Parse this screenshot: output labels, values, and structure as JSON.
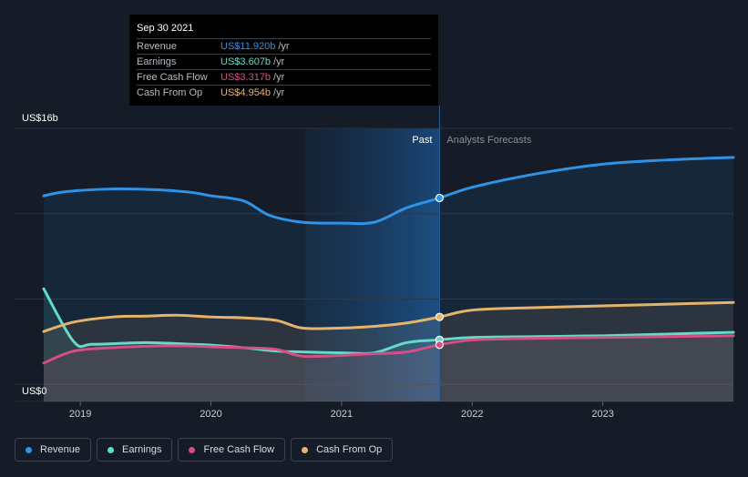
{
  "chart_data": {
    "type": "area",
    "y_axis": {
      "max_label": "US$16b",
      "min_label": "US$0",
      "ylim": [
        0,
        16
      ]
    },
    "x_ticks": [
      "2019",
      "2020",
      "2021",
      "2022",
      "2023"
    ],
    "x_range": [
      2018.72,
      2024.0
    ],
    "past_label": "Past",
    "forecast_label": "Analysts Forecasts",
    "divider_x": 2021.75,
    "shaded_start": 2020.72,
    "grid": true,
    "series": [
      {
        "name": "Revenue",
        "color": "#2e93e6",
        "x": [
          2018.72,
          2018.9,
          2019.25,
          2019.6,
          2019.85,
          2020.0,
          2020.25,
          2020.45,
          2020.7,
          2021.0,
          2021.25,
          2021.5,
          2021.75,
          2022.0,
          2022.5,
          2023.0,
          2023.5,
          2024.0
        ],
        "values": [
          12.05,
          12.3,
          12.45,
          12.4,
          12.25,
          12.05,
          11.75,
          10.9,
          10.5,
          10.45,
          10.5,
          11.35,
          11.92,
          12.55,
          13.35,
          13.9,
          14.15,
          14.3
        ]
      },
      {
        "name": "Earnings",
        "color": "#60dcca",
        "x": [
          2018.72,
          2018.95,
          2019.1,
          2019.5,
          2019.85,
          2020.0,
          2020.25,
          2020.5,
          2020.7,
          2021.0,
          2021.25,
          2021.5,
          2021.75,
          2022.0,
          2022.5,
          2023.0,
          2023.5,
          2024.0
        ],
        "values": [
          6.6,
          3.5,
          3.35,
          3.45,
          3.35,
          3.3,
          3.15,
          2.95,
          2.9,
          2.85,
          2.85,
          3.45,
          3.61,
          3.75,
          3.8,
          3.85,
          3.95,
          4.05
        ]
      },
      {
        "name": "Free Cash Flow",
        "color": "#d74d86",
        "x": [
          2018.72,
          2018.95,
          2019.25,
          2019.6,
          2019.85,
          2020.0,
          2020.25,
          2020.5,
          2020.7,
          2021.0,
          2021.25,
          2021.5,
          2021.75,
          2022.0,
          2022.5,
          2023.0,
          2023.5,
          2024.0
        ],
        "values": [
          2.25,
          2.95,
          3.15,
          3.25,
          3.25,
          3.2,
          3.15,
          3.05,
          2.65,
          2.7,
          2.8,
          2.9,
          3.32,
          3.6,
          3.7,
          3.75,
          3.8,
          3.85
        ]
      },
      {
        "name": "Cash From Op",
        "color": "#e7b36a",
        "x": [
          2018.72,
          2018.95,
          2019.25,
          2019.5,
          2019.75,
          2020.0,
          2020.25,
          2020.5,
          2020.7,
          2021.0,
          2021.25,
          2021.5,
          2021.75,
          2022.0,
          2022.5,
          2023.0,
          2023.5,
          2024.0
        ],
        "values": [
          4.1,
          4.65,
          4.95,
          5.0,
          5.05,
          4.95,
          4.9,
          4.75,
          4.3,
          4.3,
          4.4,
          4.6,
          4.95,
          5.35,
          5.5,
          5.6,
          5.7,
          5.8
        ]
      }
    ]
  },
  "tooltip": {
    "date": "Sep 30 2021",
    "rows": [
      {
        "label": "Revenue",
        "value": "US$11.920b",
        "unit": "/yr",
        "color": "#2e93e6"
      },
      {
        "label": "Earnings",
        "value": "US$3.607b",
        "unit": "/yr",
        "color": "#60dcca"
      },
      {
        "label": "Free Cash Flow",
        "value": "US$3.317b",
        "unit": "/yr",
        "color": "#d74d86"
      },
      {
        "label": "Cash From Op",
        "value": "US$4.954b",
        "unit": "/yr",
        "color": "#e7b36a"
      }
    ]
  },
  "legend": [
    {
      "label": "Revenue",
      "color": "#2e93e6"
    },
    {
      "label": "Earnings",
      "color": "#60dcca"
    },
    {
      "label": "Free Cash Flow",
      "color": "#d74d86"
    },
    {
      "label": "Cash From Op",
      "color": "#e7b36a"
    }
  ]
}
